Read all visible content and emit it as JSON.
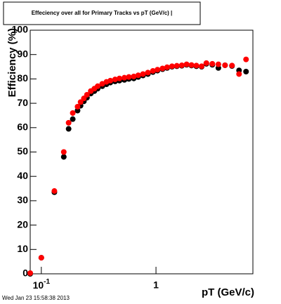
{
  "chart_data": {
    "type": "scatter",
    "title": "Effeciency over all for Primary Tracks vs pT (GeV/c) |",
    "x_label": "pT (GeV/c)",
    "y_label": "Efficiency (%)",
    "footer": "Wed Jan 23 15:58:38 2013",
    "x_log": true,
    "xlim": [
      0.08,
      7
    ],
    "ylim": [
      0,
      100
    ],
    "xticks": [
      {
        "value": 0.1,
        "label": "10",
        "exponent": "-1"
      },
      1
    ],
    "yticks": [
      0,
      10,
      20,
      30,
      40,
      50,
      60,
      70,
      80,
      90,
      100
    ],
    "x": [
      0.08,
      0.1,
      0.13,
      0.157,
      0.173,
      0.188,
      0.207,
      0.22,
      0.235,
      0.25,
      0.27,
      0.29,
      0.31,
      0.34,
      0.37,
      0.4,
      0.44,
      0.48,
      0.53,
      0.58,
      0.64,
      0.7,
      0.77,
      0.85,
      0.94,
      1.03,
      1.14,
      1.25,
      1.38,
      1.52,
      1.68,
      1.85,
      2.04,
      2.25,
      2.5,
      2.75,
      3.1,
      3.5,
      4.0,
      4.6,
      5.3,
      6.1
    ],
    "series": [
      {
        "color": "#000000",
        "values": [
          0,
          6.6,
          33.5,
          48,
          59.5,
          63.5,
          67,
          69,
          70.8,
          72.3,
          74,
          75,
          76,
          77,
          77.8,
          78.5,
          79,
          79.3,
          79.6,
          80,
          80.2,
          80.8,
          81.4,
          82,
          82.8,
          83.4,
          84,
          84.5,
          85,
          85.2,
          85.4,
          85.8,
          85.5,
          85.2,
          85,
          86.2,
          85.8,
          84.5,
          85.6,
          85.3,
          83.5,
          83
        ]
      },
      {
        "color": "#ff0000",
        "values": [
          0.3,
          6.6,
          34,
          50,
          62,
          66,
          68.6,
          70.5,
          72,
          73.5,
          75,
          76,
          77,
          78,
          78.8,
          79.3,
          79.8,
          80.2,
          80.5,
          80.8,
          81,
          81.5,
          82,
          82.6,
          83.3,
          83.8,
          84.3,
          84.8,
          85.2,
          85.4,
          85.6,
          86,
          85.7,
          85.5,
          85.2,
          86.5,
          86.2,
          86,
          85.6,
          85.5,
          82,
          88
        ]
      }
    ]
  }
}
